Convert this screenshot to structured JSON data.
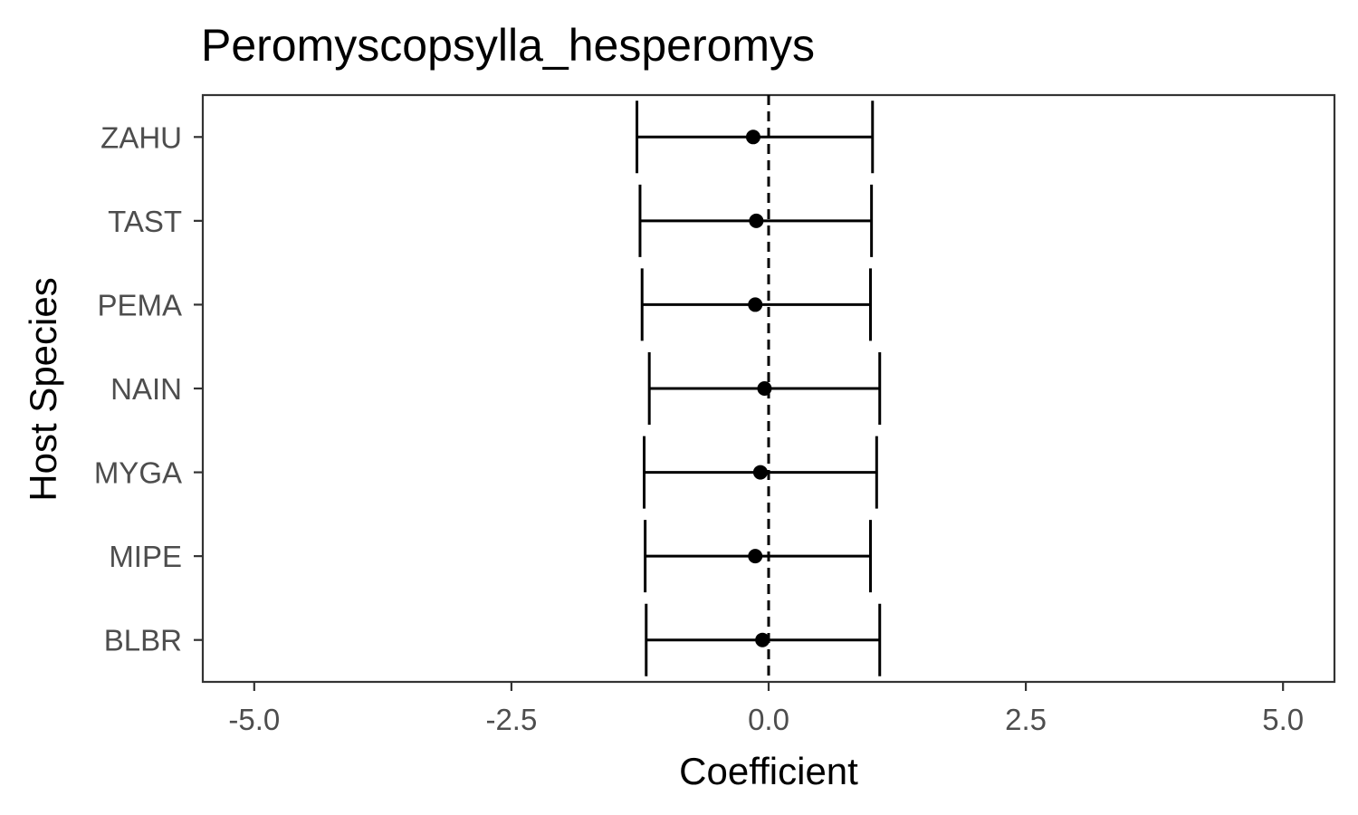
{
  "chart_data": {
    "type": "scatter",
    "subtype": "coefficient-errorbar",
    "title": "Peromyscopsylla_hesperomys",
    "xlabel": "Coefficient",
    "ylabel": "Host Species",
    "xlim": [
      -5.5,
      5.5
    ],
    "xticks": [
      -5.0,
      -2.5,
      0.0,
      2.5,
      5.0
    ],
    "xtick_labels": [
      "-5.0",
      "-2.5",
      "0.0",
      "2.5",
      "5.0"
    ],
    "reference_line": {
      "x": 0.0,
      "style": "dashed"
    },
    "grid": false,
    "legend": "none",
    "categories": [
      "ZAHU",
      "TAST",
      "PEMA",
      "NAIN",
      "MYGA",
      "MIPE",
      "BLBR"
    ],
    "estimates": [
      -0.15,
      -0.12,
      -0.13,
      -0.04,
      -0.08,
      -0.13,
      -0.06
    ],
    "lower": [
      -1.28,
      -1.25,
      -1.23,
      -1.16,
      -1.21,
      -1.2,
      -1.19
    ],
    "upper": [
      1.01,
      1.0,
      0.99,
      1.08,
      1.05,
      0.99,
      1.08
    ],
    "color": "#000000"
  }
}
